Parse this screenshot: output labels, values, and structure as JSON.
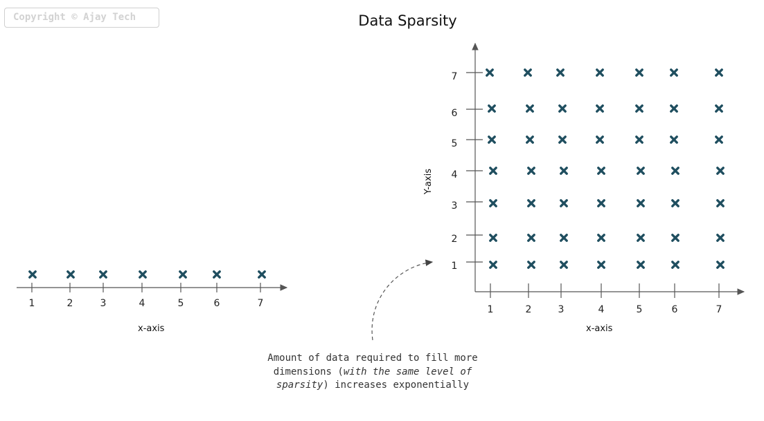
{
  "copyright": "Copyright © Ajay Tech",
  "title": "Data Sparsity",
  "left_plot": {
    "xlabel": "x-axis",
    "x_ticks": [
      "1",
      "2",
      "3",
      "4",
      "5",
      "6",
      "7"
    ]
  },
  "right_plot": {
    "xlabel": "x-axis",
    "ylabel": "Y-axis",
    "x_ticks": [
      "1",
      "2",
      "3",
      "4",
      "5",
      "6",
      "7"
    ],
    "y_ticks": [
      "1",
      "2",
      "3",
      "4",
      "5",
      "6",
      "7"
    ]
  },
  "caption": {
    "line1": "Amount of data required to fill more",
    "line2_pre": "dimensions (",
    "line2_italic": "with the same level of",
    "line3_italic": "sparsity",
    "line3_post": ") increases exponentially"
  },
  "colors": {
    "marker": "#1f4e5f",
    "axis": "#555555"
  }
}
